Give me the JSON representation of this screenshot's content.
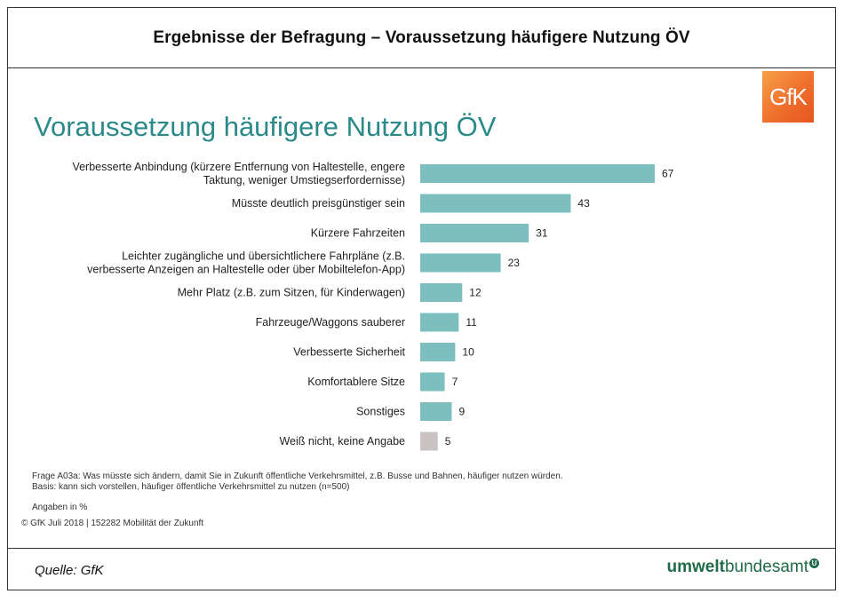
{
  "header": {
    "title": "Ergebnisse der Befragung – Voraussetzung häufigere Nutzung ÖV"
  },
  "logo": {
    "text": "GfK"
  },
  "chart_data": {
    "type": "bar",
    "orientation": "horizontal",
    "title": "Voraussetzung häufigere Nutzung ÖV",
    "categories": [
      [
        "Verbesserte Anbindung (kürzere Entfernung von Haltestelle, engere",
        "Taktung, weniger Umstiegserfordernisse)"
      ],
      [
        "Müsste deutlich preisgünstiger sein"
      ],
      [
        "Kürzere Fahrzeiten"
      ],
      [
        "Leichter zugängliche und übersichtlichere Fahrpläne (z.B.",
        "verbesserte Anzeigen an Haltestelle oder über Mobiltelefon-App)"
      ],
      [
        "Mehr Platz (z.B. zum Sitzen, für Kinderwagen)"
      ],
      [
        "Fahrzeuge/Waggons sauberer"
      ],
      [
        "Verbesserte Sicherheit"
      ],
      [
        "Komfortablere Sitze"
      ],
      [
        "Sonstiges"
      ],
      [
        "Weiß nicht, keine Angabe"
      ]
    ],
    "values": [
      67,
      43,
      31,
      23,
      12,
      11,
      10,
      7,
      9,
      5
    ],
    "colors": [
      "#7dbfbf",
      "#7dbfbf",
      "#7dbfbf",
      "#7dbfbf",
      "#7dbfbf",
      "#7dbfbf",
      "#7dbfbf",
      "#7dbfbf",
      "#7dbfbf",
      "#c9c3c3"
    ],
    "xlim": [
      0,
      70
    ],
    "unit": "%"
  },
  "notes": {
    "question": "Frage A03a: Was müsste sich ändern, damit Sie in Zukunft öffentliche Verkehrsmittel, z.B. Busse und Bahnen, häufiger nutzen würden.",
    "basis": "Basis: kann sich vorstellen, häufiger öffentliche Verkehrsmittel zu nutzen (n=500)",
    "unit_label": "Angaben in %",
    "copyright": "© GfK Juli 2018 | 152282 Mobilität der Zukunft"
  },
  "footer": {
    "source": "Quelle: GfK",
    "brand_bold": "umwelt",
    "brand_regular": "bundesamt",
    "brand_mark": "U"
  }
}
